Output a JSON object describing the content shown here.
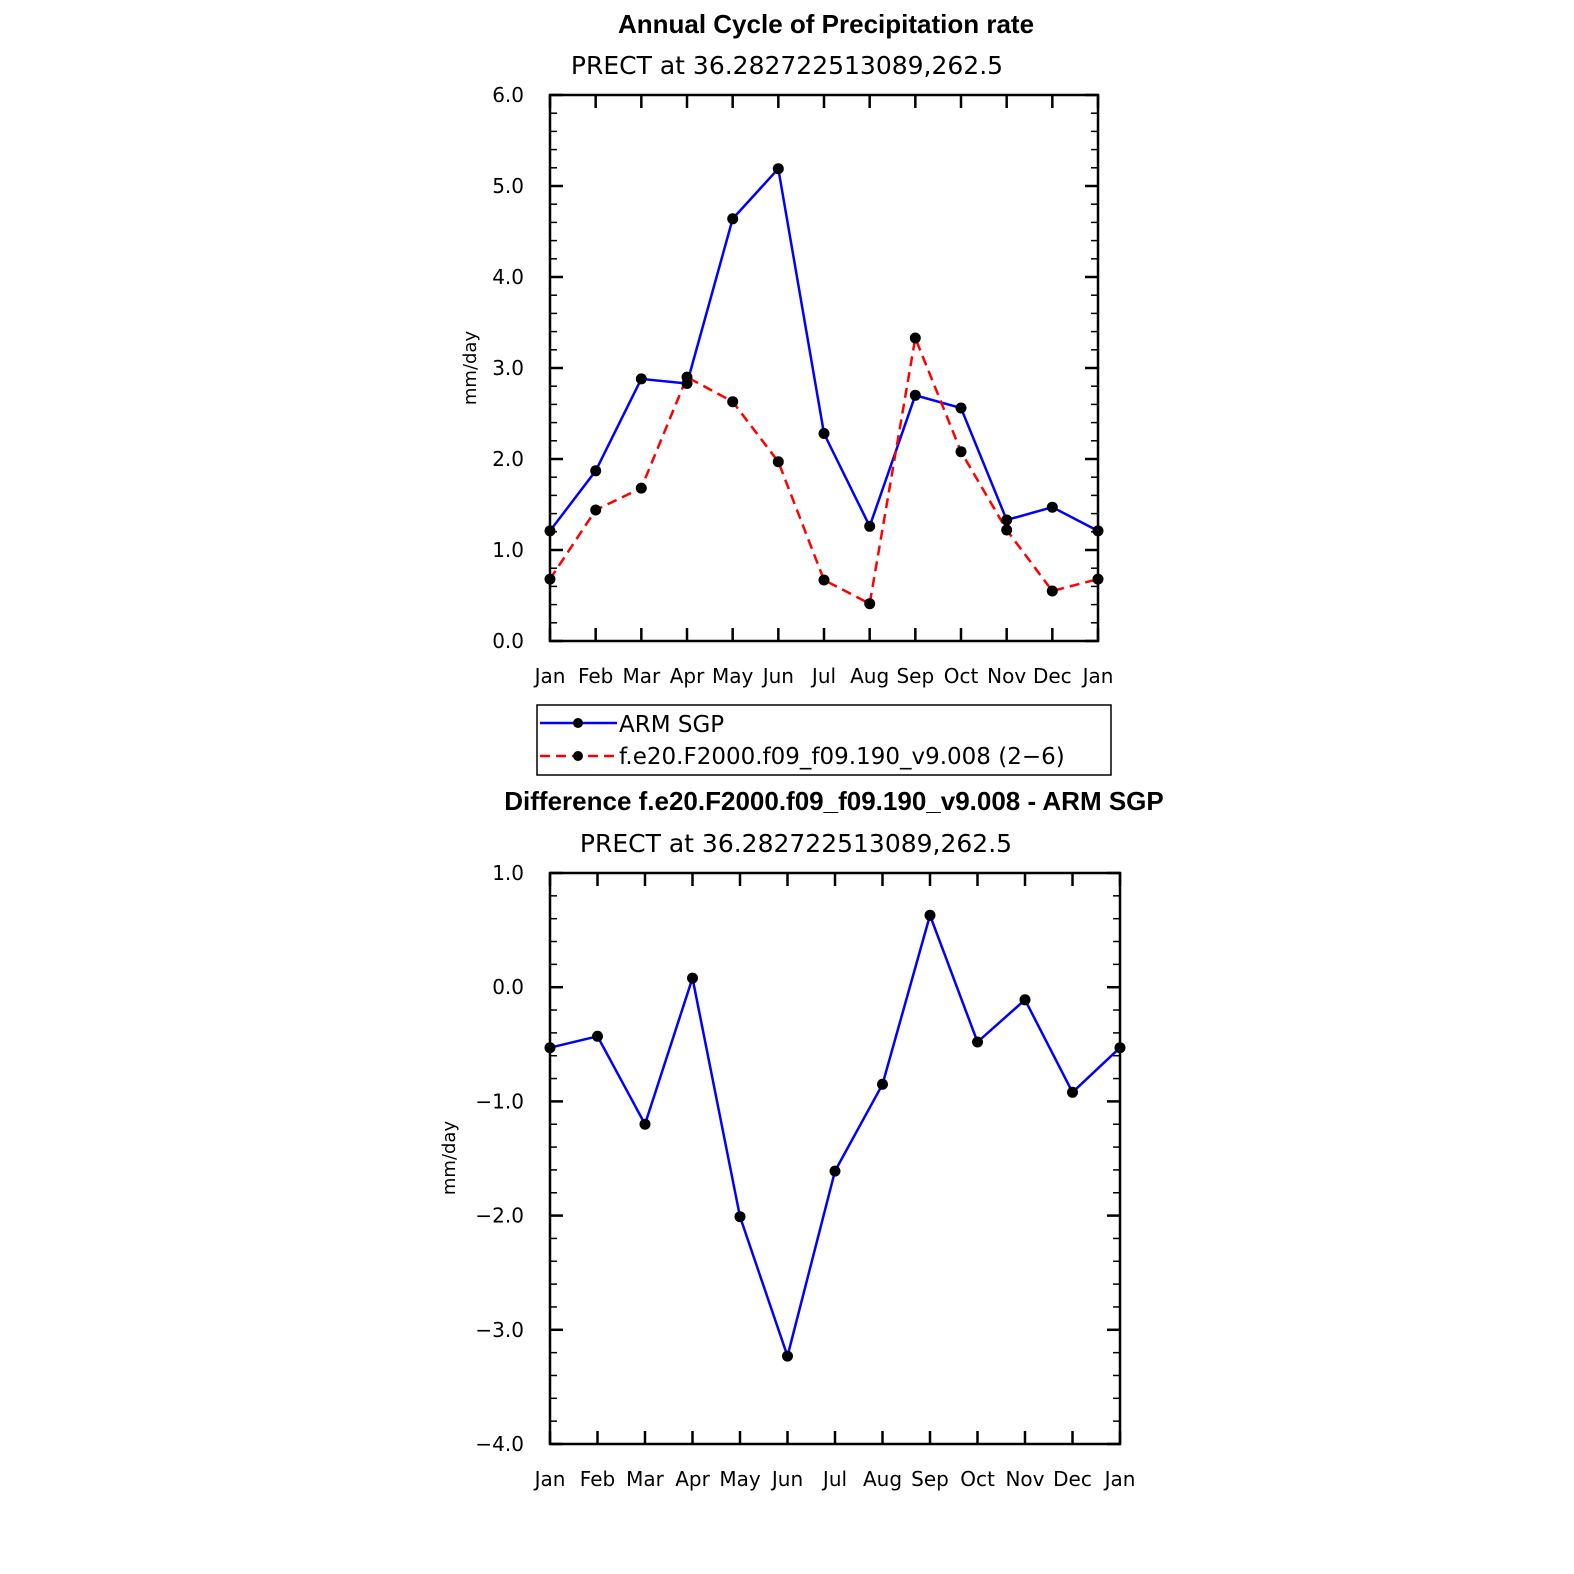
{
  "colors": {
    "obs": "#0000ff",
    "model": "#ff0000",
    "marker": "#000000",
    "axis": "#000000"
  },
  "chart_data": [
    {
      "type": "line",
      "title": "Annual Cycle of Precipitation rate",
      "subtitle": "PRECT at 36.282722513089,262.5",
      "xlabel": "",
      "ylabel": "mm/day",
      "categories": [
        "Jan",
        "Feb",
        "Mar",
        "Apr",
        "May",
        "Jun",
        "Jul",
        "Aug",
        "Sep",
        "Oct",
        "Nov",
        "Dec",
        "Jan"
      ],
      "ylim": [
        0,
        6
      ],
      "yticks": [
        0,
        1,
        2,
        3,
        4,
        5,
        6
      ],
      "ytick_labels": [
        "0.0",
        "1.0",
        "2.0",
        "3.0",
        "4.0",
        "5.0",
        "6.0"
      ],
      "series": [
        {
          "name": "ARM SGP",
          "style": "solid",
          "color": "#0000ff",
          "values": [
            1.21,
            1.87,
            2.88,
            2.83,
            4.64,
            5.19,
            2.28,
            1.26,
            2.7,
            2.56,
            1.33,
            1.47,
            1.21
          ]
        },
        {
          "name": "f.e20.F2000.f09_f09.190_v9.008 (2−6)",
          "style": "dashed",
          "color": "#ff0000",
          "values": [
            0.68,
            1.44,
            1.68,
            2.9,
            2.63,
            1.97,
            0.67,
            0.41,
            3.33,
            2.08,
            1.22,
            0.55,
            0.68
          ]
        }
      ],
      "legend": [
        "ARM SGP",
        "f.e20.F2000.f09_f09.190_v9.008 (2−6)"
      ]
    },
    {
      "type": "line",
      "title": "Difference f.e20.F2000.f09_f09.190_v9.008 - ARM SGP",
      "subtitle": "PRECT at 36.282722513089,262.5",
      "xlabel": "",
      "ylabel": "mm/day",
      "categories": [
        "Jan",
        "Feb",
        "Mar",
        "Apr",
        "May",
        "Jun",
        "Jul",
        "Aug",
        "Sep",
        "Oct",
        "Nov",
        "Dec",
        "Jan"
      ],
      "ylim": [
        -4,
        1
      ],
      "yticks": [
        -4,
        -3,
        -2,
        -1,
        0,
        1
      ],
      "ytick_labels": [
        "−4.0",
        "−3.0",
        "−2.0",
        "−1.0",
        "0.0",
        "1.0"
      ],
      "series": [
        {
          "name": "Difference",
          "style": "solid",
          "color": "#0000ff",
          "values": [
            -0.53,
            -0.43,
            -1.2,
            0.08,
            -2.01,
            -3.23,
            -1.61,
            -0.85,
            0.63,
            -0.48,
            -0.11,
            -0.92,
            -0.53
          ]
        }
      ]
    }
  ]
}
